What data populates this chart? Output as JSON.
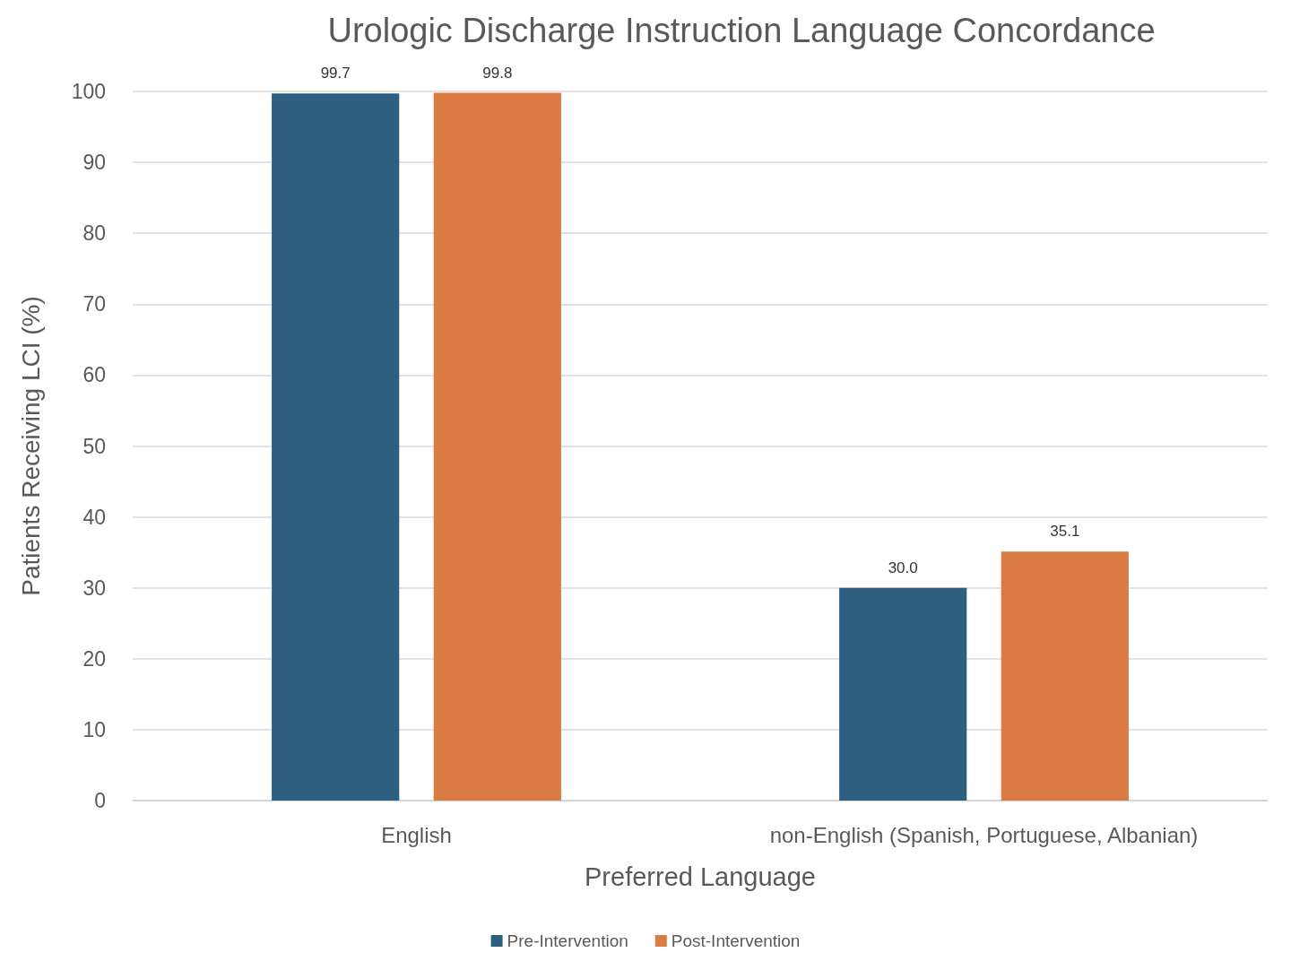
{
  "chart_data": {
    "type": "bar",
    "title": "Urologic Discharge Instruction Language Concordance",
    "xlabel": "Preferred Language",
    "ylabel": "Patients Receiving LCI (%)",
    "categories": [
      "English",
      "non-English (Spanish, Portuguese, Albanian)"
    ],
    "series": [
      {
        "name": "Pre-Intervention",
        "color": "#2e5f80",
        "values": [
          99.7,
          30.0
        ],
        "value_labels": [
          "99.7",
          "30.0"
        ]
      },
      {
        "name": "Post-Intervention",
        "color": "#d97b43",
        "values": [
          99.8,
          35.1
        ],
        "value_labels": [
          "99.8",
          "35.1"
        ]
      }
    ],
    "ylim": [
      0,
      100
    ],
    "yticks": [
      0,
      10,
      20,
      30,
      40,
      50,
      60,
      70,
      80,
      90,
      100
    ],
    "grid": "y",
    "legend": "bottom"
  }
}
